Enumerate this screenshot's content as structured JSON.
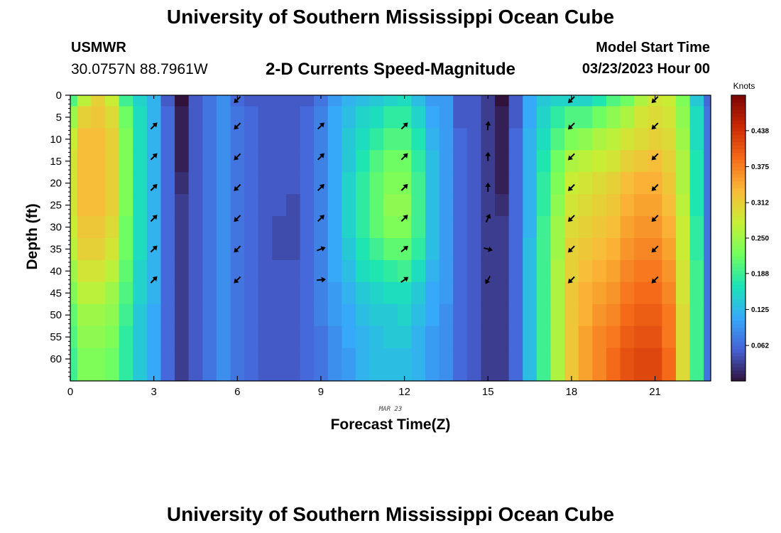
{
  "header": {
    "title": "University of Southern Mississippi Ocean Cube",
    "station": "USMWR",
    "coordinates": "30.0757N  88.7961W",
    "subtitle": "2-D Currents Speed-Magnitude",
    "start_label": "Model Start Time",
    "start_value": "03/23/2023 Hour 00"
  },
  "footer": {
    "title": "University of Southern Mississippi Ocean Cube"
  },
  "chart_data": {
    "type": "heatmap",
    "title": "2-D Currents Speed-Magnitude",
    "xlabel": "Forecast Time(Z)",
    "ylabel": "Depth (ft)",
    "date_label": "MAR 23",
    "xlim": [
      0,
      23
    ],
    "ylim": [
      65,
      0
    ],
    "x_ticks": [
      0,
      3,
      6,
      9,
      12,
      15,
      18,
      21
    ],
    "y_ticks": [
      0,
      5,
      10,
      15,
      20,
      25,
      30,
      35,
      40,
      45,
      50,
      55,
      60
    ],
    "colorbar": {
      "label": "Knots",
      "ticks": [
        "0.062",
        "0.125",
        "0.188",
        "0.250",
        "0.312",
        "0.375",
        "0.438"
      ],
      "tick_values": [
        0.062,
        0.125,
        0.188,
        0.25,
        0.312,
        0.375,
        0.438
      ],
      "range": [
        0,
        0.5
      ],
      "colors": [
        "#30123b",
        "#4662d7",
        "#36aaf9",
        "#1ae4b6",
        "#72fe5e",
        "#c7ef34",
        "#fabb39",
        "#f66b19",
        "#cb2a04",
        "#7a0403"
      ]
    },
    "hours": [
      0,
      0.5,
      1,
      1.5,
      2,
      2.5,
      3,
      3.5,
      4,
      4.5,
      5,
      5.5,
      6,
      6.5,
      7,
      7.5,
      8,
      8.5,
      9,
      9.5,
      10,
      10.5,
      11,
      11.5,
      12,
      12.5,
      13,
      13.5,
      14,
      14.5,
      15,
      15.5,
      16,
      16.5,
      17,
      17.5,
      18,
      18.5,
      19,
      19.5,
      20,
      20.5,
      21,
      21.5,
      22,
      22.5,
      23
    ],
    "depths_ft": [
      0,
      5,
      10,
      15,
      20,
      25,
      30,
      35,
      40,
      45,
      50,
      55,
      60,
      65
    ],
    "speed_knots": [
      [
        0.2,
        0.27,
        0.31,
        0.28,
        0.19,
        0.15,
        0.12,
        0.05,
        0.0,
        0.05,
        0.07,
        0.09,
        0.06,
        0.05,
        0.05,
        0.05,
        0.05,
        0.05,
        0.07,
        0.1,
        0.12,
        0.13,
        0.14,
        0.15,
        0.16,
        0.13,
        0.1,
        0.1,
        0.05,
        0.05,
        0.03,
        0.0,
        0.05,
        0.11,
        0.14,
        0.15,
        0.15,
        0.15,
        0.17,
        0.2,
        0.22,
        0.26,
        0.29,
        0.28,
        0.23,
        0.14,
        0.06
      ],
      [
        0.25,
        0.31,
        0.32,
        0.3,
        0.22,
        0.16,
        0.12,
        0.06,
        0.01,
        0.05,
        0.07,
        0.09,
        0.07,
        0.06,
        0.05,
        0.05,
        0.05,
        0.06,
        0.08,
        0.11,
        0.13,
        0.15,
        0.16,
        0.18,
        0.18,
        0.15,
        0.11,
        0.1,
        0.05,
        0.05,
        0.03,
        0.01,
        0.05,
        0.11,
        0.15,
        0.18,
        0.2,
        0.2,
        0.22,
        0.24,
        0.26,
        0.29,
        0.3,
        0.29,
        0.24,
        0.16,
        0.07
      ],
      [
        0.28,
        0.33,
        0.33,
        0.31,
        0.23,
        0.16,
        0.12,
        0.06,
        0.01,
        0.05,
        0.07,
        0.09,
        0.07,
        0.06,
        0.05,
        0.05,
        0.05,
        0.06,
        0.08,
        0.11,
        0.14,
        0.16,
        0.18,
        0.2,
        0.2,
        0.17,
        0.12,
        0.1,
        0.06,
        0.05,
        0.03,
        0.01,
        0.06,
        0.12,
        0.16,
        0.2,
        0.23,
        0.24,
        0.26,
        0.27,
        0.29,
        0.3,
        0.31,
        0.3,
        0.25,
        0.16,
        0.07
      ],
      [
        0.29,
        0.33,
        0.33,
        0.31,
        0.23,
        0.16,
        0.12,
        0.06,
        0.01,
        0.05,
        0.07,
        0.09,
        0.07,
        0.06,
        0.05,
        0.05,
        0.05,
        0.06,
        0.08,
        0.11,
        0.14,
        0.17,
        0.2,
        0.22,
        0.22,
        0.18,
        0.13,
        0.1,
        0.06,
        0.05,
        0.03,
        0.01,
        0.06,
        0.12,
        0.17,
        0.22,
        0.26,
        0.27,
        0.28,
        0.29,
        0.31,
        0.32,
        0.33,
        0.31,
        0.26,
        0.17,
        0.07
      ],
      [
        0.29,
        0.33,
        0.33,
        0.31,
        0.23,
        0.16,
        0.12,
        0.06,
        0.02,
        0.05,
        0.07,
        0.09,
        0.07,
        0.06,
        0.05,
        0.05,
        0.05,
        0.06,
        0.08,
        0.11,
        0.15,
        0.18,
        0.21,
        0.23,
        0.23,
        0.19,
        0.13,
        0.1,
        0.06,
        0.05,
        0.03,
        0.01,
        0.06,
        0.12,
        0.18,
        0.23,
        0.28,
        0.29,
        0.3,
        0.31,
        0.33,
        0.34,
        0.34,
        0.32,
        0.26,
        0.17,
        0.07
      ],
      [
        0.29,
        0.33,
        0.33,
        0.31,
        0.23,
        0.16,
        0.12,
        0.06,
        0.03,
        0.05,
        0.07,
        0.09,
        0.07,
        0.06,
        0.05,
        0.05,
        0.04,
        0.06,
        0.08,
        0.11,
        0.15,
        0.18,
        0.21,
        0.24,
        0.24,
        0.19,
        0.13,
        0.1,
        0.06,
        0.05,
        0.03,
        0.02,
        0.06,
        0.12,
        0.18,
        0.24,
        0.29,
        0.3,
        0.31,
        0.32,
        0.34,
        0.35,
        0.35,
        0.33,
        0.27,
        0.17,
        0.07
      ],
      [
        0.28,
        0.32,
        0.32,
        0.3,
        0.22,
        0.16,
        0.12,
        0.06,
        0.03,
        0.05,
        0.07,
        0.09,
        0.07,
        0.06,
        0.05,
        0.04,
        0.04,
        0.06,
        0.08,
        0.11,
        0.15,
        0.18,
        0.21,
        0.23,
        0.23,
        0.19,
        0.13,
        0.1,
        0.06,
        0.05,
        0.03,
        0.03,
        0.06,
        0.12,
        0.19,
        0.25,
        0.3,
        0.31,
        0.32,
        0.33,
        0.35,
        0.36,
        0.36,
        0.34,
        0.28,
        0.18,
        0.07
      ],
      [
        0.27,
        0.31,
        0.31,
        0.29,
        0.22,
        0.16,
        0.12,
        0.06,
        0.03,
        0.05,
        0.07,
        0.09,
        0.07,
        0.06,
        0.05,
        0.04,
        0.04,
        0.06,
        0.08,
        0.11,
        0.14,
        0.17,
        0.19,
        0.21,
        0.21,
        0.18,
        0.13,
        0.1,
        0.06,
        0.05,
        0.03,
        0.03,
        0.06,
        0.13,
        0.19,
        0.25,
        0.31,
        0.32,
        0.33,
        0.34,
        0.36,
        0.37,
        0.37,
        0.35,
        0.28,
        0.18,
        0.07
      ],
      [
        0.25,
        0.29,
        0.29,
        0.27,
        0.21,
        0.15,
        0.12,
        0.06,
        0.03,
        0.05,
        0.07,
        0.09,
        0.07,
        0.06,
        0.05,
        0.05,
        0.05,
        0.06,
        0.08,
        0.11,
        0.13,
        0.16,
        0.17,
        0.18,
        0.19,
        0.16,
        0.12,
        0.1,
        0.06,
        0.05,
        0.03,
        0.03,
        0.06,
        0.13,
        0.19,
        0.26,
        0.31,
        0.33,
        0.34,
        0.35,
        0.37,
        0.38,
        0.38,
        0.36,
        0.29,
        0.19,
        0.07
      ],
      [
        0.23,
        0.27,
        0.27,
        0.25,
        0.2,
        0.15,
        0.12,
        0.06,
        0.03,
        0.05,
        0.07,
        0.09,
        0.07,
        0.06,
        0.05,
        0.05,
        0.05,
        0.06,
        0.08,
        0.1,
        0.12,
        0.14,
        0.15,
        0.16,
        0.16,
        0.14,
        0.11,
        0.1,
        0.06,
        0.05,
        0.03,
        0.03,
        0.06,
        0.13,
        0.19,
        0.26,
        0.32,
        0.34,
        0.35,
        0.36,
        0.38,
        0.39,
        0.39,
        0.37,
        0.29,
        0.19,
        0.07
      ],
      [
        0.21,
        0.25,
        0.25,
        0.24,
        0.19,
        0.14,
        0.11,
        0.06,
        0.03,
        0.05,
        0.07,
        0.09,
        0.07,
        0.06,
        0.05,
        0.05,
        0.05,
        0.06,
        0.08,
        0.1,
        0.11,
        0.13,
        0.14,
        0.14,
        0.15,
        0.13,
        0.11,
        0.09,
        0.06,
        0.05,
        0.03,
        0.03,
        0.06,
        0.13,
        0.19,
        0.26,
        0.32,
        0.34,
        0.36,
        0.37,
        0.39,
        0.4,
        0.4,
        0.38,
        0.3,
        0.19,
        0.07
      ],
      [
        0.2,
        0.24,
        0.24,
        0.23,
        0.18,
        0.14,
        0.11,
        0.06,
        0.03,
        0.05,
        0.07,
        0.09,
        0.07,
        0.06,
        0.05,
        0.05,
        0.05,
        0.06,
        0.07,
        0.09,
        0.11,
        0.12,
        0.13,
        0.14,
        0.14,
        0.12,
        0.1,
        0.09,
        0.06,
        0.05,
        0.03,
        0.03,
        0.06,
        0.13,
        0.19,
        0.26,
        0.32,
        0.35,
        0.37,
        0.38,
        0.4,
        0.41,
        0.41,
        0.38,
        0.3,
        0.19,
        0.07
      ],
      [
        0.19,
        0.23,
        0.23,
        0.22,
        0.18,
        0.14,
        0.11,
        0.06,
        0.03,
        0.05,
        0.07,
        0.09,
        0.07,
        0.06,
        0.05,
        0.05,
        0.05,
        0.06,
        0.07,
        0.09,
        0.1,
        0.12,
        0.13,
        0.13,
        0.13,
        0.12,
        0.1,
        0.09,
        0.06,
        0.05,
        0.03,
        0.03,
        0.06,
        0.13,
        0.19,
        0.26,
        0.32,
        0.35,
        0.37,
        0.39,
        0.41,
        0.42,
        0.42,
        0.39,
        0.3,
        0.19,
        0.07
      ],
      [
        0.19,
        0.23,
        0.23,
        0.22,
        0.18,
        0.14,
        0.11,
        0.06,
        0.03,
        0.05,
        0.07,
        0.09,
        0.07,
        0.06,
        0.05,
        0.05,
        0.05,
        0.06,
        0.07,
        0.09,
        0.1,
        0.12,
        0.13,
        0.13,
        0.13,
        0.12,
        0.1,
        0.09,
        0.06,
        0.05,
        0.03,
        0.03,
        0.06,
        0.13,
        0.19,
        0.26,
        0.32,
        0.35,
        0.37,
        0.39,
        0.41,
        0.42,
        0.42,
        0.39,
        0.3,
        0.19,
        0.07
      ]
    ],
    "vectors": {
      "hours": [
        3,
        6,
        9,
        12,
        15,
        18,
        21
      ],
      "depths_ft": [
        1,
        7,
        14,
        21,
        28,
        35,
        42
      ],
      "angles_deg": [
        [
          null,
          135,
          null,
          null,
          null,
          135,
          135
        ],
        [
          315,
          135,
          315,
          315,
          275,
          135,
          135
        ],
        [
          315,
          135,
          315,
          315,
          270,
          135,
          135
        ],
        [
          315,
          135,
          315,
          315,
          270,
          135,
          135
        ],
        [
          315,
          135,
          315,
          315,
          295,
          135,
          135
        ],
        [
          315,
          135,
          340,
          320,
          15,
          135,
          135
        ],
        [
          315,
          135,
          355,
          325,
          120,
          135,
          135
        ]
      ]
    }
  }
}
